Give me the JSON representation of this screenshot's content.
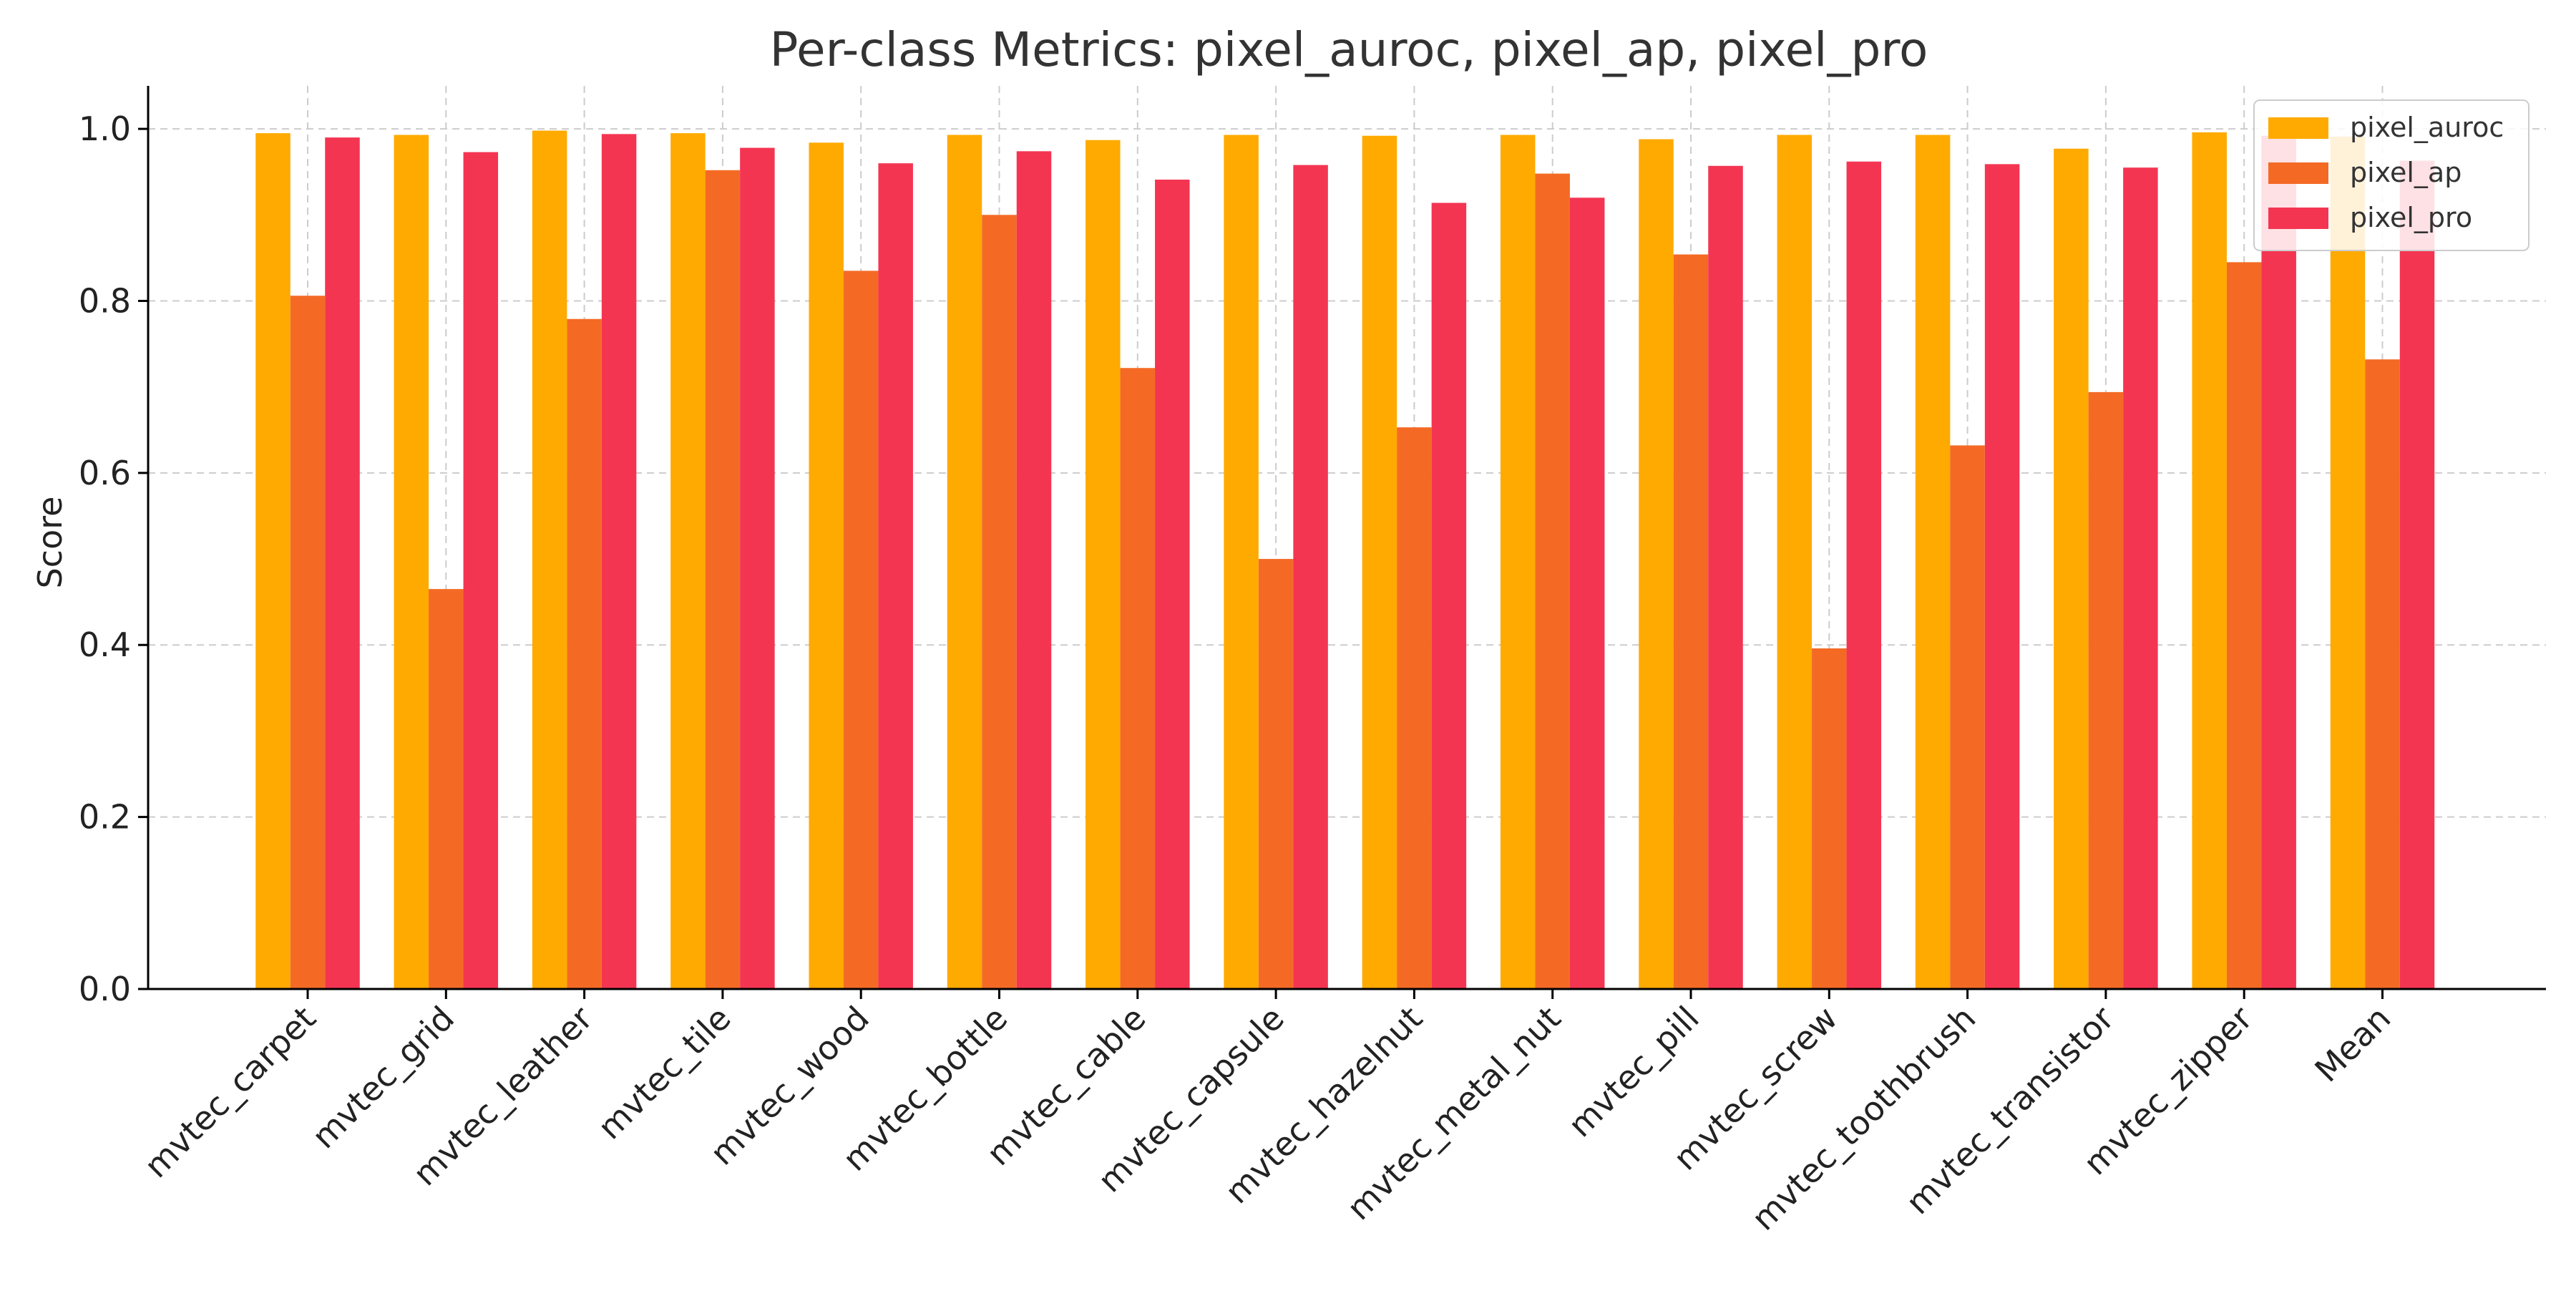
{
  "chart_data": {
    "type": "bar",
    "title": "Per-class Metrics: pixel_auroc, pixel_ap, pixel_pro",
    "xlabel": "",
    "ylabel": "Score",
    "ylim": [
      0,
      1.05
    ],
    "yticks": [
      "0.0",
      "0.2",
      "0.4",
      "0.6",
      "0.8",
      "1.0"
    ],
    "grid": true,
    "legend_position": "top-right",
    "categories": [
      "mvtec_carpet",
      "mvtec_grid",
      "mvtec_leather",
      "mvtec_tile",
      "mvtec_wood",
      "mvtec_bottle",
      "mvtec_cable",
      "mvtec_capsule",
      "mvtec_hazelnut",
      "mvtec_metal_nut",
      "mvtec_pill",
      "mvtec_screw",
      "mvtec_toothbrush",
      "mvtec_transistor",
      "mvtec_zipper",
      "Mean"
    ],
    "series": [
      {
        "name": "pixel_auroc",
        "color": "#FFAA00",
        "values": [
          0.995,
          0.993,
          0.998,
          0.995,
          0.984,
          0.993,
          0.987,
          0.993,
          0.992,
          0.993,
          0.988,
          0.993,
          0.993,
          0.977,
          0.996,
          0.991
        ]
      },
      {
        "name": "pixel_ap",
        "color": "#F46A25",
        "values": [
          0.806,
          0.465,
          0.779,
          0.952,
          0.835,
          0.9,
          0.722,
          0.5,
          0.653,
          0.948,
          0.854,
          0.396,
          0.632,
          0.694,
          0.845,
          0.732
        ]
      },
      {
        "name": "pixel_pro",
        "color": "#F43552",
        "values": [
          0.99,
          0.973,
          0.994,
          0.978,
          0.96,
          0.974,
          0.941,
          0.958,
          0.914,
          0.92,
          0.957,
          0.962,
          0.959,
          0.955,
          0.992,
          0.963
        ]
      }
    ]
  }
}
